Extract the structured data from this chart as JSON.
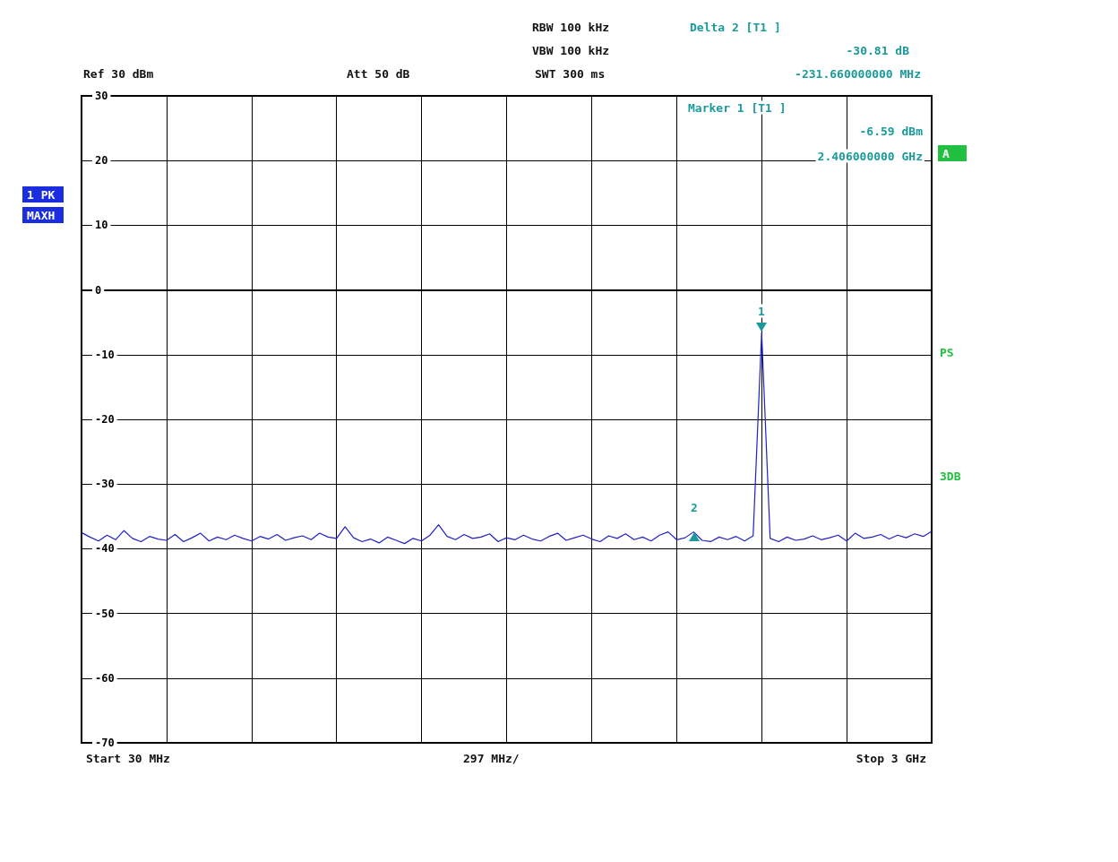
{
  "chart_data": {
    "type": "line",
    "categories": [
      null,
      null,
      null,
      null,
      null,
      null,
      null,
      null,
      null,
      null,
      null,
      null,
      null,
      null,
      null,
      null,
      null,
      null,
      null,
      null,
      null,
      null,
      null,
      null,
      null,
      null,
      null,
      null,
      null,
      null,
      null,
      null,
      null,
      null,
      null,
      null,
      null,
      null,
      null,
      null,
      null,
      null,
      null,
      null,
      null,
      null,
      null,
      null,
      null,
      null,
      null,
      null,
      null,
      null,
      null,
      null,
      null,
      null,
      null,
      null,
      null,
      null,
      null,
      null,
      null,
      null,
      null,
      null,
      null,
      null,
      null,
      null,
      null,
      null,
      null,
      null,
      null,
      null,
      null,
      null,
      null,
      null,
      null,
      null,
      null,
      null,
      null,
      null,
      null,
      null,
      null,
      null,
      null,
      null,
      null,
      null,
      null,
      null,
      null,
      null,
      null
    ],
    "series": [
      {
        "color": "#2020c8",
        "values": [
          -37.5,
          -38.2,
          -38.8,
          -37.9,
          -38.6,
          -37.2,
          -38.4,
          -38.9,
          -38.1,
          -38.5,
          -38.7,
          -37.8,
          -38.9,
          -38.3,
          -37.6,
          -38.8,
          -38.2,
          -38.6,
          -37.9,
          -38.4,
          -38.8,
          -38.1,
          -38.5,
          -37.8,
          -38.7,
          -38.3,
          -38.0,
          -38.6,
          -37.6,
          -38.2,
          -38.4,
          -36.6,
          -38.3,
          -38.9,
          -38.5,
          -39.1,
          -38.2,
          -38.7,
          -39.2,
          -38.4,
          -38.8,
          -37.9,
          -36.3,
          -38.1,
          -38.6,
          -37.8,
          -38.4,
          -38.2,
          -37.7,
          -38.9,
          -38.3,
          -38.6,
          -37.9,
          -38.5,
          -38.8,
          -38.1,
          -37.6,
          -38.7,
          -38.3,
          -37.9,
          -38.5,
          -38.9,
          -38.0,
          -38.4,
          -37.7,
          -38.6,
          -38.2,
          -38.8,
          -37.9,
          -37.4,
          -38.6,
          -38.3,
          -37.4,
          -38.7,
          -38.9,
          -38.2,
          -38.6,
          -38.1,
          -38.8,
          -38.0,
          -6.59,
          -38.4,
          -38.9,
          -38.2,
          -38.7,
          -38.5,
          -38.0,
          -38.6,
          -38.3,
          -37.9,
          -38.8,
          -37.6,
          -38.4,
          -38.2,
          -37.8,
          -38.5,
          -37.9,
          -38.3,
          -37.7,
          -38.1,
          -37.3
        ]
      }
    ],
    "ylim": [
      -70,
      30
    ],
    "yticks": [
      -70,
      -60,
      -50,
      -40,
      -30,
      -20,
      -10,
      0,
      10,
      20,
      30
    ],
    "tick_labels": "y",
    "grid": true,
    "marker": "none",
    "line_style": "solid",
    "annotations": [
      "RBW 100 kHz",
      "VBW 100 kHz",
      "SWT 300 ms",
      "Ref 30 dBm",
      "Att 50 dB",
      "Delta 2 [T1 ]",
      "-30.81 dB",
      "-231.660000000 MHz",
      "Marker 1 [T1 ]",
      "-6.59 dBm",
      "2.406000000 GHz",
      "1 PK",
      "MAXH",
      "A",
      "PS",
      "3DB",
      "Start 30 MHz",
      "297 MHz/",
      "Stop 3 GHz",
      "1",
      "2"
    ]
  }
}
